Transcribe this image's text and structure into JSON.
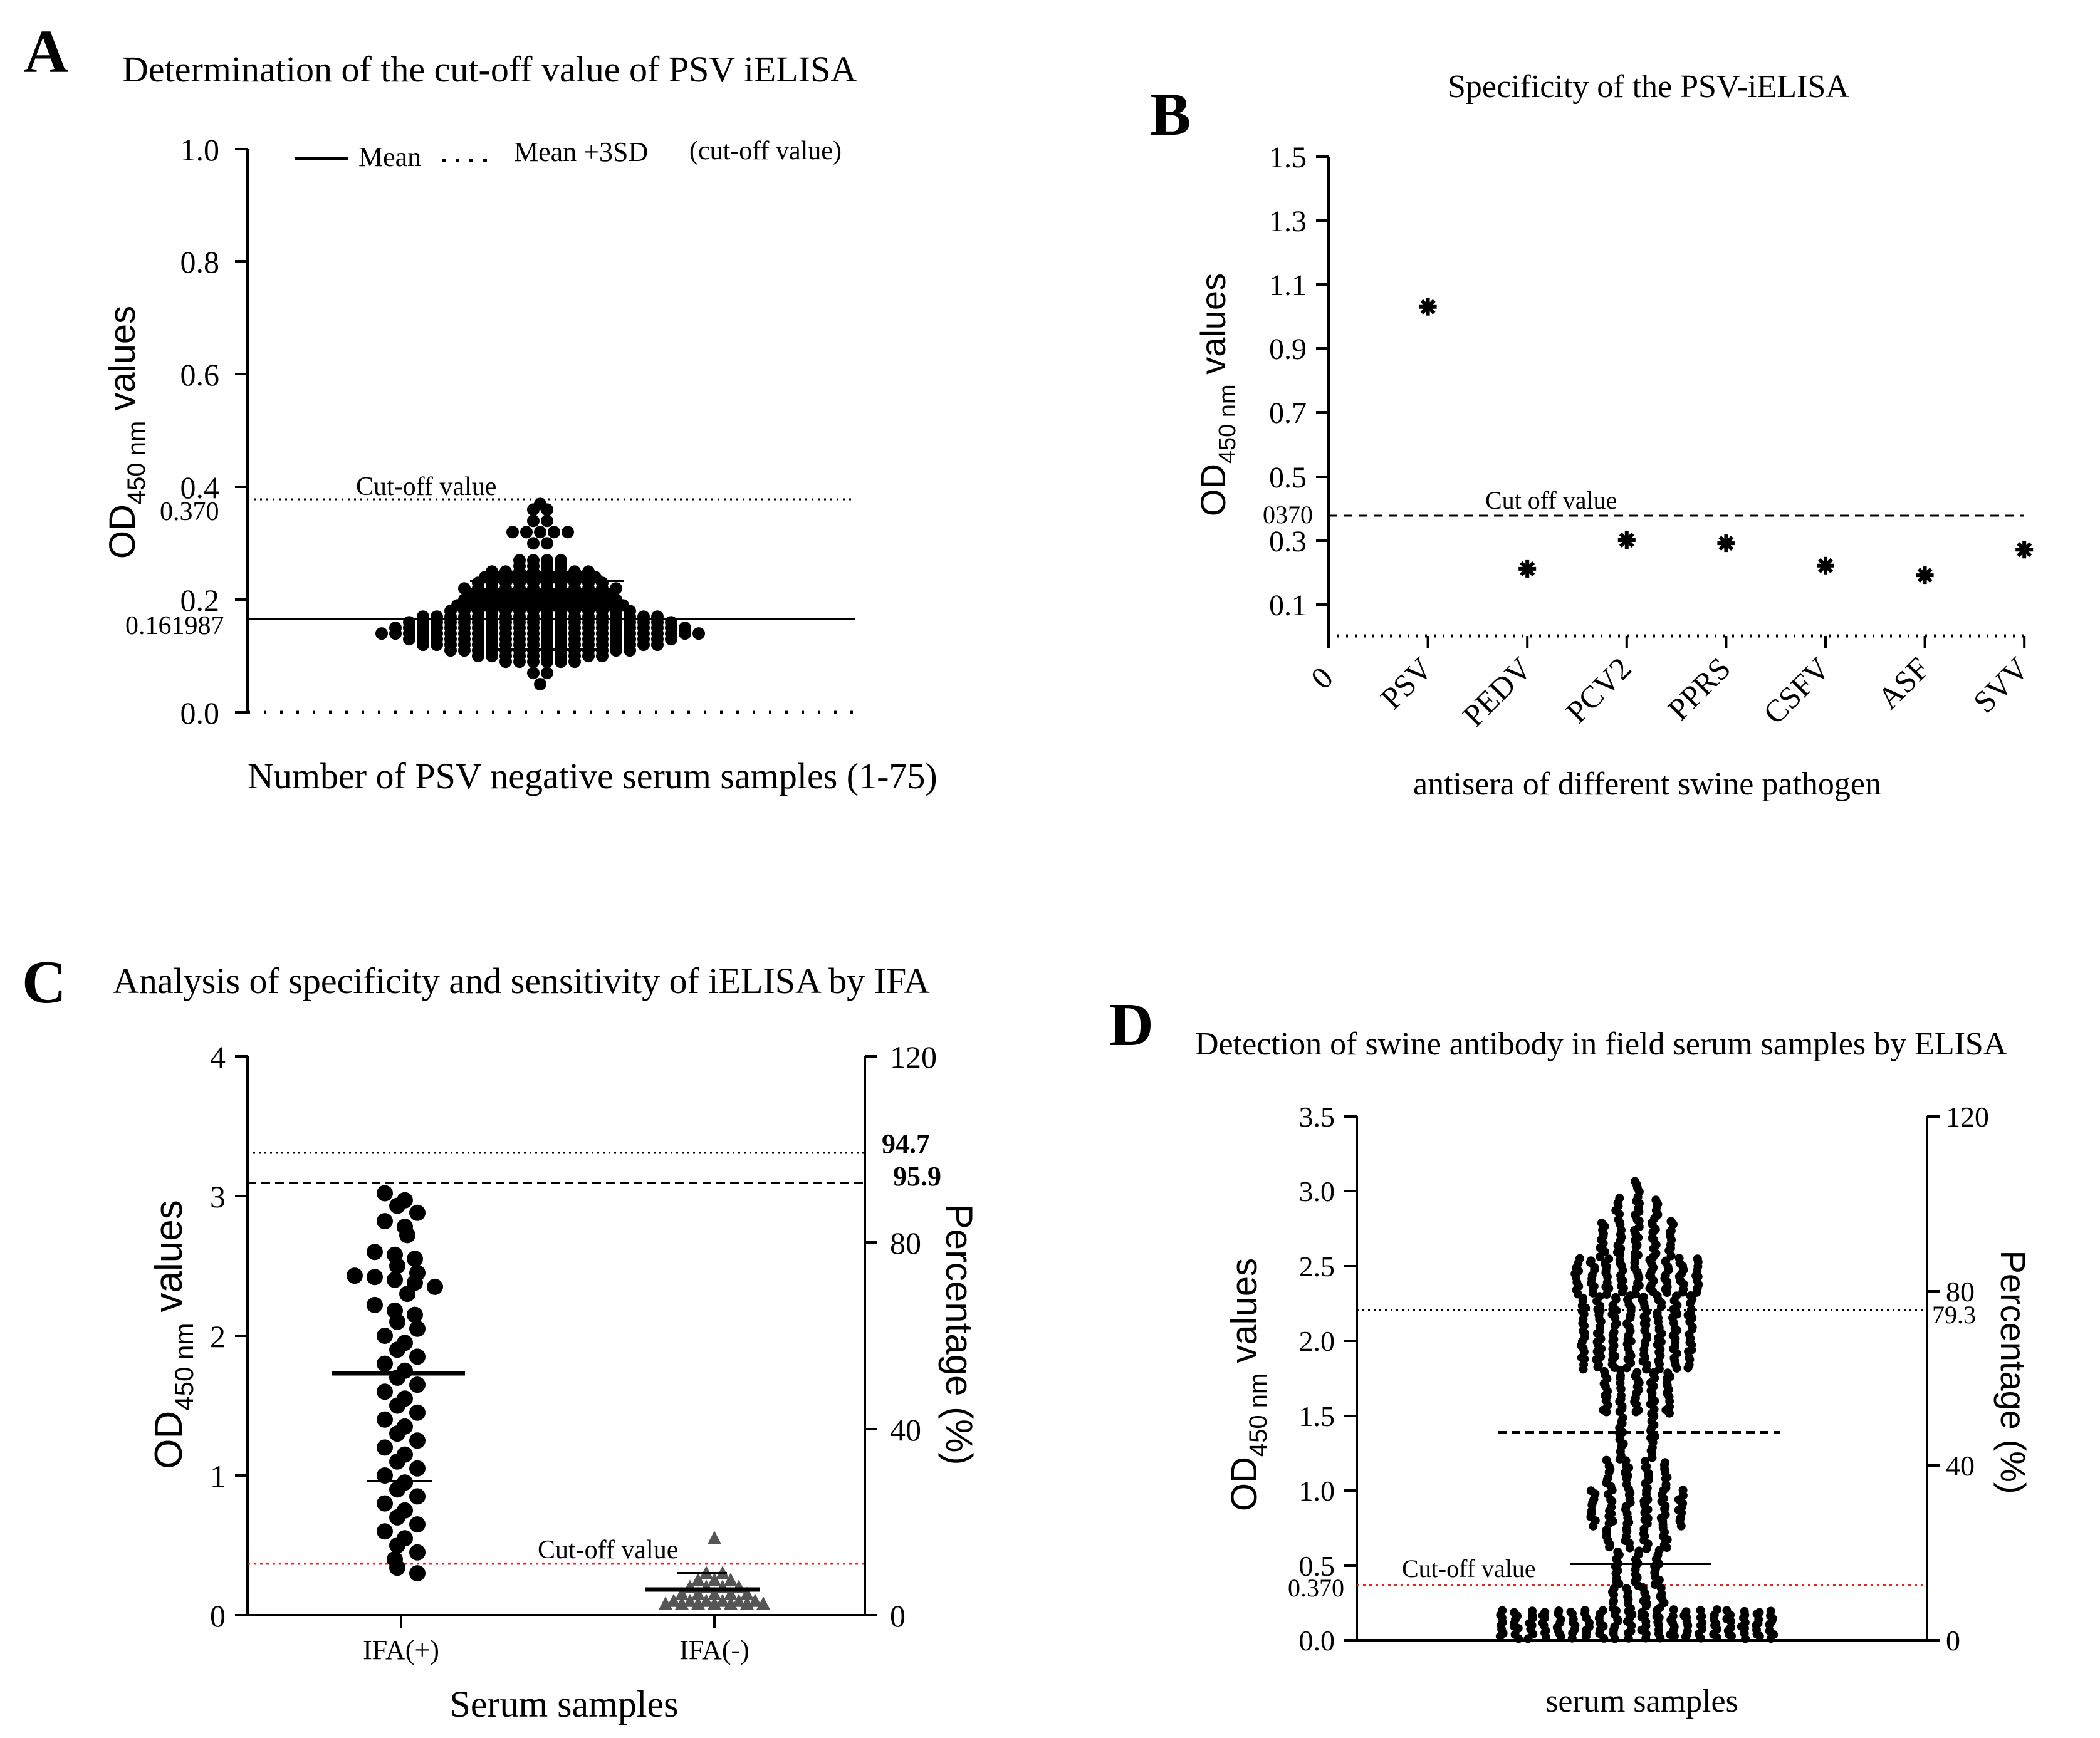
{
  "panels": {
    "A": {
      "letter": "A",
      "title": "Determination of the cut-off value of PSV iELISA",
      "ylabel_main": "OD",
      "ylabel_sub": "450 nm",
      "ylabel_tail": " values",
      "xlabel": "Number of PSV negative serum samples (1-75)",
      "yticks": [
        "0.0",
        "0.2",
        "0.4",
        "0.6",
        "0.8",
        "1.0"
      ],
      "legend": {
        "mean": "Mean",
        "mean3sd": "Mean +3SD",
        "cutoff_note": "(cut-off value)"
      },
      "cutoff_text": "Cut-off value",
      "cutoff_value_label": "0.370",
      "mean_value_label": "0.161987"
    },
    "B": {
      "letter": "B",
      "title": "Specificity of the PSV-iELISA",
      "ylabel_main": "OD",
      "ylabel_sub": "450 nm",
      "ylabel_tail": " values",
      "xlabel": "antisera of different swine pathogen",
      "yticks": [
        "0.1",
        "0.3",
        "0.5",
        "0.7",
        "0.9",
        "1.1",
        "1.3",
        "1.5"
      ],
      "cutoff_text": "Cut off value",
      "cutoff_value_label": "0370",
      "x_zero_label": "0"
    },
    "C": {
      "letter": "C",
      "title": "Analysis of specificity and sensitivity of iELISA by IFA",
      "ylabel_main": "OD",
      "ylabel_sub": "450 nm",
      "ylabel_tail": " values",
      "ylabel_right": "Percentage (%)",
      "xlabel": "Serum samples",
      "yticks_left": [
        "0",
        "1",
        "2",
        "3",
        "4"
      ],
      "yticks_right": [
        "0",
        "40",
        "80",
        "120"
      ],
      "pct_label_1": "94.7",
      "pct_label_2": "95.9",
      "cutoff_text": "Cut-off value"
    },
    "D": {
      "letter": "D",
      "title": "Detection of swine  antibody in field serum samples by ELISA",
      "ylabel_main": "OD",
      "ylabel_sub": "450 nm",
      "ylabel_tail": " values",
      "ylabel_right": "Percentage (%)",
      "xlabel": "serum samples",
      "yticks_left": [
        "0.0",
        "0.5",
        "1.0",
        "1.5",
        "2.0",
        "2.5",
        "3.0",
        "3.5"
      ],
      "yticks_right": [
        "0",
        "40",
        "80",
        "120"
      ],
      "pct_label": "79.3",
      "cutoff_text": "Cut-off value",
      "cutoff_value_label": "0.370"
    }
  },
  "chart_data": [
    {
      "panel": "A",
      "type": "scatter",
      "title": "Determination of the cut-off value of PSV iELISA",
      "xlabel": "Number of PSV negative serum samples (1-75)",
      "ylabel": "OD450 nm values",
      "ylim": [
        0.0,
        1.0
      ],
      "series": [
        {
          "name": "",
          "values": [
            0.05,
            0.09,
            0.1,
            0.11,
            0.12,
            0.13,
            0.14,
            0.15,
            0.16,
            0.17,
            0.18,
            0.19,
            0.2,
            0.21,
            0.22,
            0.23,
            0.24,
            0.25,
            0.26,
            0.27,
            0.3,
            0.32,
            0.34,
            0.36,
            0.37
          ]
        }
      ],
      "mean": 0.161987,
      "mean_plus_3sd": 0.37,
      "sd_whisker": [
        0.12,
        0.24
      ],
      "grid": false,
      "legend": "top"
    },
    {
      "panel": "B",
      "type": "scatter",
      "title": "Specificity of the PSV-iELISA",
      "xlabel": "antisera of different swine pathogen",
      "ylabel": "OD450 nm values",
      "categories": [
        "PSV",
        "PEDV",
        "PCV2",
        "PPRS",
        "CSFV",
        "ASF",
        "SVV"
      ],
      "values": [
        1.03,
        0.21,
        0.3,
        0.29,
        0.22,
        0.19,
        0.27
      ],
      "cutoff": 0.37,
      "ylim": [
        0.0,
        1.5
      ],
      "grid": false
    },
    {
      "panel": "C",
      "type": "scatter",
      "title": "Analysis of specificity and sensitivity of iELISA by IFA",
      "xlabel": "Serum samples",
      "ylabel": "OD450 nm values",
      "ylabel_right": "Percentage (%)",
      "categories": [
        "IFA(+)",
        "IFA(-)"
      ],
      "series": [
        {
          "name": "IFA(+)",
          "mean": 1.73,
          "sd_low": 0.96,
          "range": [
            0.3,
            3.02
          ]
        },
        {
          "name": "IFA(-)",
          "mean": 0.19,
          "sd_low": 0.08,
          "sd_high": 0.3,
          "range": [
            0.08,
            0.55
          ]
        }
      ],
      "reference_lines_percent": [
        94.7,
        95.9
      ],
      "cutoff": 0.37,
      "ylim": [
        0,
        4
      ],
      "ylim_right": [
        0,
        120
      ],
      "grid": false
    },
    {
      "panel": "D",
      "type": "scatter",
      "title": "Detection of swine  antibody in field serum samples by ELISA",
      "xlabel": "serum samples",
      "ylabel": "OD450 nm values",
      "ylabel_right": "Percentage (%)",
      "mean": 1.39,
      "sd_low": 0.51,
      "range": [
        0.02,
        3.07
      ],
      "reference_line_percent": 79.3,
      "cutoff": 0.37,
      "ylim": [
        0.0,
        3.5
      ],
      "ylim_right": [
        0,
        120
      ],
      "grid": false
    }
  ]
}
